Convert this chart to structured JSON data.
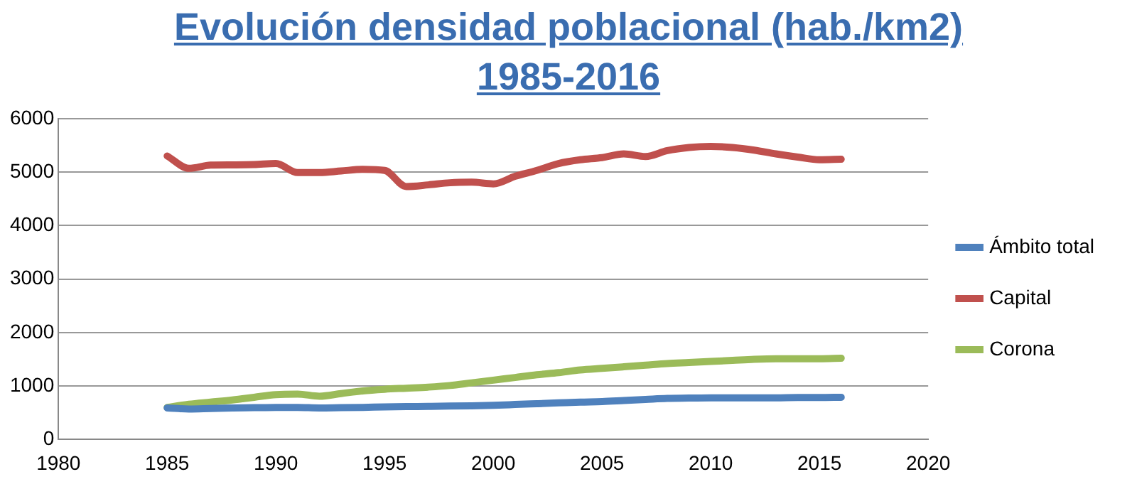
{
  "chart_data": {
    "type": "line",
    "title": "Evolución densidad poblacional (hab./km2)\n1985-2016",
    "x": [
      1985,
      1986,
      1987,
      1988,
      1989,
      1990,
      1991,
      1992,
      1993,
      1994,
      1995,
      1996,
      1997,
      1998,
      1999,
      2000,
      2001,
      2002,
      2003,
      2004,
      2005,
      2006,
      2007,
      2008,
      2009,
      2010,
      2011,
      2012,
      2013,
      2014,
      2015,
      2016
    ],
    "series": [
      {
        "name": "Ámbito total",
        "color": "#4f81bd",
        "values": [
          590,
          570,
          580,
          590,
          595,
          600,
          600,
          590,
          595,
          600,
          610,
          615,
          620,
          625,
          630,
          640,
          655,
          670,
          685,
          700,
          710,
          730,
          750,
          770,
          775,
          780,
          780,
          780,
          780,
          785,
          785,
          790
        ]
      },
      {
        "name": "Capital",
        "color": "#c0504d",
        "values": [
          5300,
          5070,
          5130,
          5135,
          5140,
          5160,
          4990,
          4990,
          5020,
          5050,
          5030,
          4730,
          4760,
          4800,
          4810,
          4780,
          4920,
          5030,
          5160,
          5230,
          5270,
          5340,
          5290,
          5400,
          5460,
          5480,
          5460,
          5410,
          5340,
          5280,
          5230,
          5240
        ]
      },
      {
        "name": "Corona",
        "color": "#9bbb59",
        "values": [
          600,
          660,
          700,
          740,
          790,
          840,
          850,
          810,
          860,
          910,
          940,
          960,
          980,
          1010,
          1060,
          1110,
          1160,
          1210,
          1250,
          1300,
          1330,
          1360,
          1390,
          1420,
          1440,
          1460,
          1480,
          1500,
          1510,
          1510,
          1510,
          1520
        ]
      }
    ],
    "xlim": [
      1980,
      2020
    ],
    "xticks": [
      1980,
      1985,
      1990,
      1995,
      2000,
      2005,
      2010,
      2015,
      2020
    ],
    "ylim": [
      0,
      6000
    ],
    "yticks": [
      0,
      1000,
      2000,
      3000,
      4000,
      5000,
      6000
    ],
    "grid": "y",
    "legend": "right",
    "marker": "none",
    "line_style": "solid"
  }
}
